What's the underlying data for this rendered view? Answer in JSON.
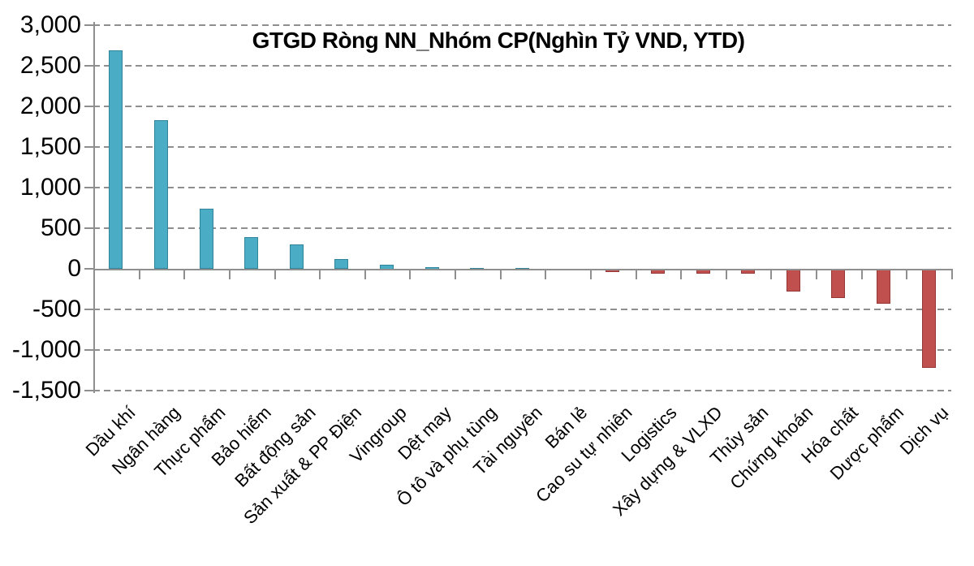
{
  "chart_data": {
    "type": "bar",
    "title": "GTGD Ròng NN_Nhóm CP(Nghìn Tỷ VND, YTD)",
    "categories": [
      "Dầu khí",
      "Ngân hàng",
      "Thực phẩm",
      "Bảo hiểm",
      "Bất động sản",
      "Sản xuất & PP Điện",
      "Vingroup",
      "Dệt may",
      "Ô tô và phụ tùng",
      "Tài nguyên",
      "Bán lẻ",
      "Cao su tự nhiên",
      "Logistics",
      "Xây dựng & VLXD",
      "Thủy sản",
      "Chứng khoán",
      "Hóa chất",
      "Dược phẩm",
      "Dịch vụ"
    ],
    "values": [
      2690,
      1830,
      740,
      390,
      300,
      120,
      55,
      25,
      15,
      10,
      0,
      -40,
      -60,
      -60,
      -55,
      -275,
      -360,
      -430,
      -1220
    ],
    "xlabel": "",
    "ylabel": "",
    "ylim": [
      -1500,
      3000
    ],
    "ytick_step": 500,
    "ytick_labels": [
      "3,000",
      "2,500",
      "2,000",
      "1,500",
      "1,000",
      "500",
      "0",
      "-500",
      "-1,000",
      "-1,500"
    ],
    "grid": "horizontal-dashed",
    "legend": "none",
    "colors": {
      "positive_fill": "#4BACC6",
      "positive_border": "#31859B",
      "negative_fill": "#C0504D",
      "negative_border": "#953735",
      "axis": "#8F8F8F",
      "text": "#000000",
      "background": "#FFFFFF"
    }
  }
}
